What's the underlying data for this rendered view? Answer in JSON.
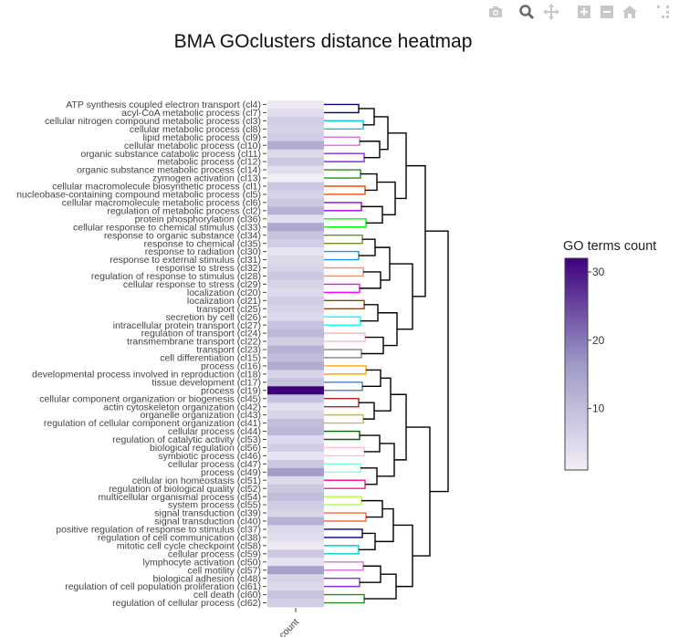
{
  "title": "BMA GOclusters distance heatmap",
  "modebar": {
    "icons": [
      "camera-icon",
      "zoom-icon",
      "pan-icon",
      "zoom-in-icon",
      "zoom-out-icon",
      "home-icon",
      "autoscale-icon"
    ]
  },
  "chart_data": {
    "type": "heatmap",
    "title": "BMA GOclusters distance heatmap",
    "x_categories": [
      "count"
    ],
    "rows": [
      {
        "label": "ATP synthesis coupled electron transport (cl4)",
        "count": 2
      },
      {
        "label": "acyl-CoA metabolic process (cl7)",
        "count": 4
      },
      {
        "label": "cellular nitrogen compound metabolic process (cl3)",
        "count": 7
      },
      {
        "label": "cellular metabolic process (cl8)",
        "count": 6
      },
      {
        "label": "lipid metabolic process (cl9)",
        "count": 7
      },
      {
        "label": "cellular metabolic process (cl10)",
        "count": 13
      },
      {
        "label": "organic substance catabolic process (cl11)",
        "count": 5
      },
      {
        "label": "metabolic process (cl12)",
        "count": 8
      },
      {
        "label": "organic substance metabolic process (cl14)",
        "count": 4
      },
      {
        "label": "zymogen activation (cl13)",
        "count": 1
      },
      {
        "label": "cellular macromolecule biosynthetic process (cl1)",
        "count": 8
      },
      {
        "label": "nucleobase-containing compound metabolic process (cl5)",
        "count": 6
      },
      {
        "label": "cellular macromolecule metabolic process (cl6)",
        "count": 8
      },
      {
        "label": "regulation of metabolic process (cl2)",
        "count": 12
      },
      {
        "label": "protein phosphorylation (cl36)",
        "count": 4
      },
      {
        "label": "cellular response to chemical stimulus (cl33)",
        "count": 14
      },
      {
        "label": "response to organic substance (cl34)",
        "count": 9
      },
      {
        "label": "response to chemical (cl35)",
        "count": 7
      },
      {
        "label": "response to radiation (cl30)",
        "count": 3
      },
      {
        "label": "response to external stimulus (cl31)",
        "count": 5
      },
      {
        "label": "response to stress (cl32)",
        "count": 6
      },
      {
        "label": "regulation of response to stimulus (cl28)",
        "count": 8
      },
      {
        "label": "cellular response to stress (cl29)",
        "count": 6
      },
      {
        "label": "localization (cl20)",
        "count": 5
      },
      {
        "label": "localization (cl21)",
        "count": 7
      },
      {
        "label": "transport (cl25)",
        "count": 6
      },
      {
        "label": "secretion by cell (cl26)",
        "count": 5
      },
      {
        "label": "intracellular protein transport (cl27)",
        "count": 9
      },
      {
        "label": "regulation of transport (cl24)",
        "count": 11
      },
      {
        "label": "transmembrane transport (cl22)",
        "count": 7
      },
      {
        "label": "transport (cl23)",
        "count": 12
      },
      {
        "label": "cell differentiation (cl15)",
        "count": 10
      },
      {
        "label": "process (cl16)",
        "count": 13
      },
      {
        "label": "developmental process involved in reproduction (cl18)",
        "count": 6
      },
      {
        "label": "tissue development (cl17)",
        "count": 9
      },
      {
        "label": "process (cl19)",
        "count": 32
      },
      {
        "label": "cellular component organization or biogenesis (cl45)",
        "count": 9
      },
      {
        "label": "actin cytoskeleton organization (cl42)",
        "count": 4
      },
      {
        "label": "organelle organization (cl43)",
        "count": 6
      },
      {
        "label": "regulation of cellular component organization (cl41)",
        "count": 10
      },
      {
        "label": "cellular process (cl44)",
        "count": 11
      },
      {
        "label": "regulation of catalytic activity (cl53)",
        "count": 5
      },
      {
        "label": "biological regulation (cl56)",
        "count": 7
      },
      {
        "label": "symbiotic process (cl46)",
        "count": 3
      },
      {
        "label": "cellular process (cl47)",
        "count": 8
      },
      {
        "label": "process (cl49)",
        "count": 16
      },
      {
        "label": "cellular ion homeostasis (cl51)",
        "count": 5
      },
      {
        "label": "regulation of biological quality (cl52)",
        "count": 8
      },
      {
        "label": "multicellular organismal process (cl54)",
        "count": 10
      },
      {
        "label": "system process (cl55)",
        "count": 7
      },
      {
        "label": "signal transduction (cl39)",
        "count": 6
      },
      {
        "label": "signal transduction (cl40)",
        "count": 12
      },
      {
        "label": "positive regulation of response to stimulus (cl37)",
        "count": 5
      },
      {
        "label": "regulation of cell communication (cl38)",
        "count": 4
      },
      {
        "label": "mitotic cell cycle checkpoint (cl58)",
        "count": 2
      },
      {
        "label": "cellular process (cl59)",
        "count": 8
      },
      {
        "label": "lymphocyte activation (cl50)",
        "count": 3
      },
      {
        "label": "cell motility (cl57)",
        "count": 15
      },
      {
        "label": "biological adhesion (cl48)",
        "count": 6
      },
      {
        "label": "regulation of cell population proliferation (cl61)",
        "count": 5
      },
      {
        "label": "cell death (cl60)",
        "count": 9
      },
      {
        "label": "regulation of cellular process (cl62)",
        "count": 7
      }
    ],
    "colorbar": {
      "title": "GO terms count",
      "ticks": [
        10,
        20,
        30
      ],
      "range": [
        1,
        32
      ],
      "color_low": "#f3eef6",
      "color_high": "#3f007d"
    },
    "dendrogram_colors": [
      "#000080",
      "#00ced1",
      "#da70d6",
      "#8a2be2",
      "#228b22",
      "#ff4500",
      "#9400d3",
      "#00ff00",
      "#6b8e23",
      "#1e90ff",
      "#e9967a",
      "#ff00ff",
      "#8b4513",
      "#00ffff",
      "#ffb6c1",
      "#808080",
      "#ffa500",
      "#4682b4",
      "#b22222",
      "#bdb76b",
      "#006400",
      "#ffc0cb",
      "#7fffd4",
      "#ff1493",
      "#adff2f",
      "#ff6347"
    ]
  }
}
